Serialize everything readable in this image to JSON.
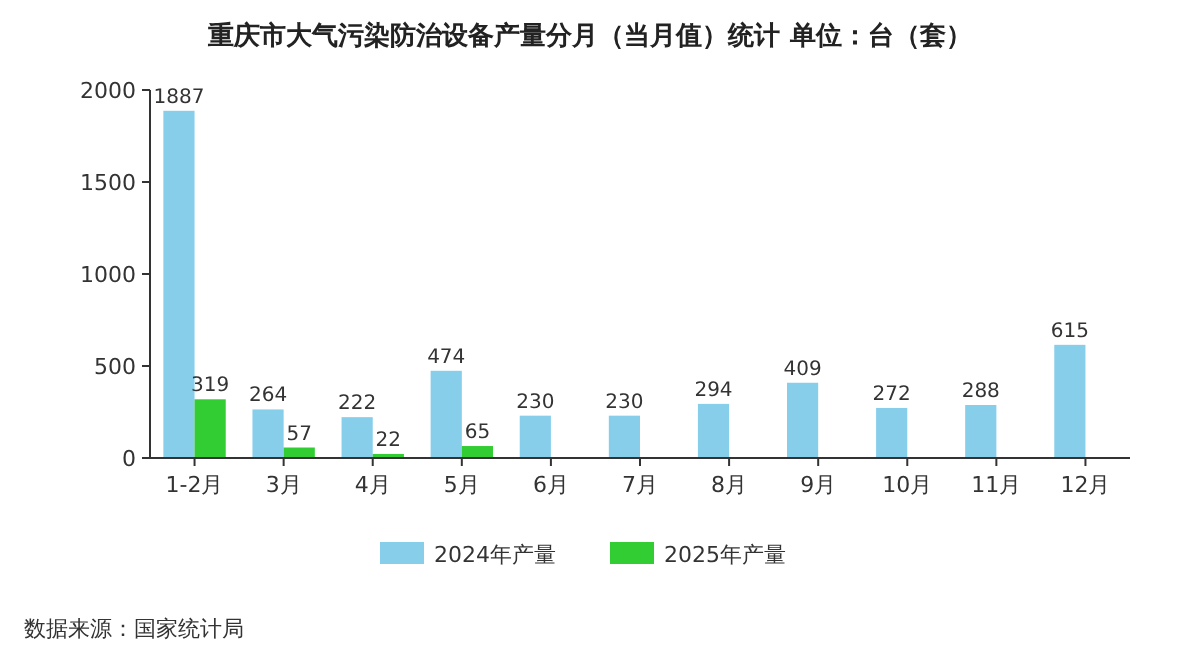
{
  "chart_data": {
    "type": "bar",
    "title": "重庆市大气污染防治设备产量分月（当月值）统计 单位：台（套）",
    "categories": [
      "1-2月",
      "3月",
      "4月",
      "5月",
      "6月",
      "7月",
      "8月",
      "9月",
      "10月",
      "11月",
      "12月"
    ],
    "series": [
      {
        "name": "2024年产量",
        "color": "#87ceeb",
        "values": [
          1887,
          264,
          222,
          474,
          230,
          230,
          294,
          409,
          272,
          288,
          615
        ]
      },
      {
        "name": "2025年产量",
        "color": "#32cd32",
        "values": [
          319,
          57,
          22,
          65,
          null,
          null,
          null,
          null,
          null,
          null,
          null
        ]
      }
    ],
    "ylim": [
      0,
      2000
    ],
    "yticks": [
      0,
      500,
      1000,
      1500,
      2000
    ],
    "grid": false,
    "legend": "bottom",
    "data_labels": true,
    "annotations": [
      "数据来源：国家统计局"
    ]
  }
}
